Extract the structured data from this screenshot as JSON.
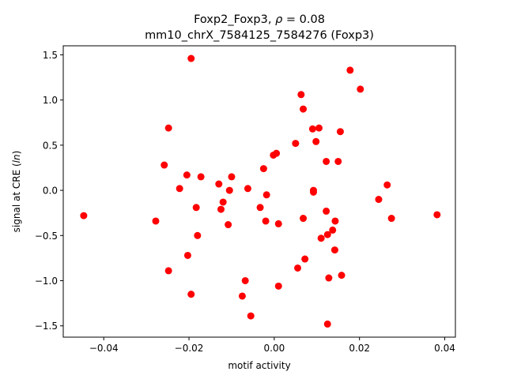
{
  "chart_data": {
    "type": "scatter",
    "title_line1_prefix": "Foxp2_Foxp3, ",
    "title_line1_symbol": "ρ",
    "title_line1_suffix": " = 0.08",
    "title_line2": "mm10_chrX_7584125_7584276 (Foxp3)",
    "xlabel": "motif activity",
    "ylabel_prefix": "signal at CRE (",
    "ylabel_italic": "ln",
    "ylabel_suffix": ")",
    "xlim": [
      -0.0495,
      0.0425
    ],
    "ylim": [
      -1.625,
      1.6
    ],
    "xticks": [
      {
        "value": -0.04,
        "label": "−0.04"
      },
      {
        "value": -0.02,
        "label": "−0.02"
      },
      {
        "value": 0.0,
        "label": "0.00"
      },
      {
        "value": 0.02,
        "label": "0.02"
      },
      {
        "value": 0.04,
        "label": "0.04"
      }
    ],
    "yticks": [
      {
        "value": -1.5,
        "label": "−1.5"
      },
      {
        "value": -1.0,
        "label": "−1.0"
      },
      {
        "value": -0.5,
        "label": "−0.5"
      },
      {
        "value": 0.0,
        "label": "0.0"
      },
      {
        "value": 0.5,
        "label": "0.5"
      },
      {
        "value": 1.0,
        "label": "1.0"
      },
      {
        "value": 1.5,
        "label": "1.5"
      }
    ],
    "marker_color": "#ff0000",
    "grid": false,
    "points": [
      {
        "x": -0.0447,
        "y": -0.28
      },
      {
        "x": -0.0278,
        "y": -0.34
      },
      {
        "x": -0.0258,
        "y": 0.28
      },
      {
        "x": -0.0248,
        "y": 0.69
      },
      {
        "x": -0.0248,
        "y": -0.89
      },
      {
        "x": -0.0222,
        "y": 0.02
      },
      {
        "x": -0.0205,
        "y": 0.17
      },
      {
        "x": -0.0203,
        "y": -0.72
      },
      {
        "x": -0.0195,
        "y": 1.46
      },
      {
        "x": -0.0195,
        "y": -1.15
      },
      {
        "x": -0.0183,
        "y": -0.19
      },
      {
        "x": -0.018,
        "y": -0.5
      },
      {
        "x": -0.0172,
        "y": 0.15
      },
      {
        "x": -0.013,
        "y": 0.07
      },
      {
        "x": -0.0125,
        "y": -0.21
      },
      {
        "x": -0.012,
        "y": -0.13
      },
      {
        "x": -0.0108,
        "y": -0.38
      },
      {
        "x": -0.0105,
        "y": 0.0
      },
      {
        "x": -0.01,
        "y": 0.15
      },
      {
        "x": -0.0075,
        "y": -1.17
      },
      {
        "x": -0.0068,
        "y": -1.0
      },
      {
        "x": -0.0062,
        "y": 0.02
      },
      {
        "x": -0.0055,
        "y": -1.39
      },
      {
        "x": -0.0033,
        "y": -0.19
      },
      {
        "x": -0.0025,
        "y": 0.24
      },
      {
        "x": -0.002,
        "y": -0.34
      },
      {
        "x": -0.0018,
        "y": -0.05
      },
      {
        "x": -0.0002,
        "y": 0.39
      },
      {
        "x": 0.0005,
        "y": 0.41
      },
      {
        "x": 0.001,
        "y": -1.06
      },
      {
        "x": 0.001,
        "y": -0.37
      },
      {
        "x": 0.005,
        "y": 0.52
      },
      {
        "x": 0.0055,
        "y": -0.86
      },
      {
        "x": 0.0063,
        "y": 1.06
      },
      {
        "x": 0.0068,
        "y": 0.9
      },
      {
        "x": 0.0068,
        "y": -0.31
      },
      {
        "x": 0.0072,
        "y": -0.76
      },
      {
        "x": 0.009,
        "y": 0.68
      },
      {
        "x": 0.0092,
        "y": 0.0
      },
      {
        "x": 0.0092,
        "y": -0.02
      },
      {
        "x": 0.0098,
        "y": 0.54
      },
      {
        "x": 0.0105,
        "y": 0.69
      },
      {
        "x": 0.011,
        "y": -0.53
      },
      {
        "x": 0.0122,
        "y": 0.32
      },
      {
        "x": 0.0122,
        "y": -0.23
      },
      {
        "x": 0.0125,
        "y": -0.49
      },
      {
        "x": 0.0125,
        "y": -1.48
      },
      {
        "x": 0.0128,
        "y": -0.97
      },
      {
        "x": 0.0137,
        "y": -0.44
      },
      {
        "x": 0.0142,
        "y": -0.66
      },
      {
        "x": 0.0143,
        "y": -0.34
      },
      {
        "x": 0.015,
        "y": 0.32
      },
      {
        "x": 0.0155,
        "y": 0.65
      },
      {
        "x": 0.0158,
        "y": -0.94
      },
      {
        "x": 0.0178,
        "y": 1.33
      },
      {
        "x": 0.0202,
        "y": 1.12
      },
      {
        "x": 0.0245,
        "y": -0.1
      },
      {
        "x": 0.0265,
        "y": 0.06
      },
      {
        "x": 0.0275,
        "y": -0.31
      },
      {
        "x": 0.0382,
        "y": -0.27
      }
    ]
  }
}
